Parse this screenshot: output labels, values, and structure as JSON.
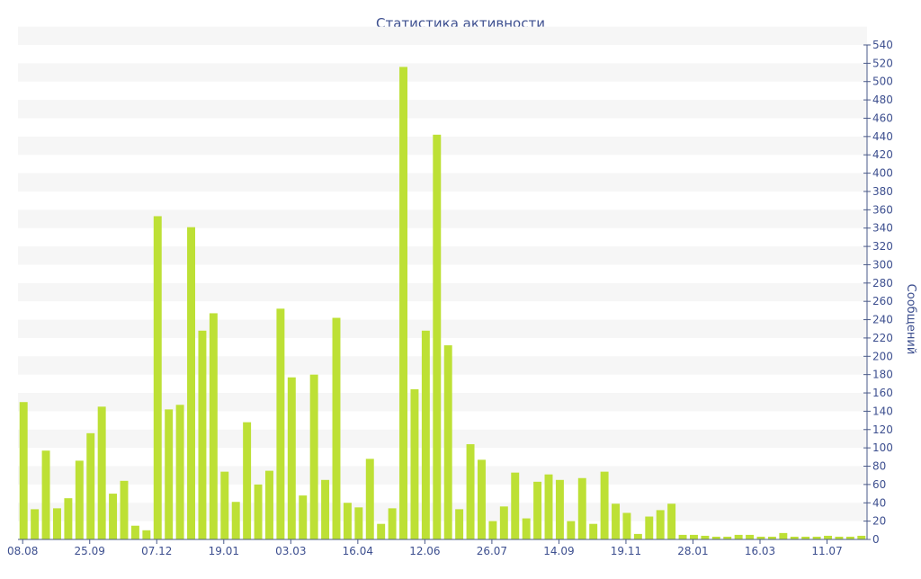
{
  "chart_data": {
    "type": "bar",
    "title": "Статистика активности",
    "xlabel": "",
    "ylabel": "Сообщений",
    "ylim": [
      0,
      540
    ],
    "y_ticks": [
      0,
      20,
      40,
      60,
      80,
      100,
      120,
      140,
      160,
      180,
      200,
      220,
      240,
      260,
      280,
      300,
      320,
      340,
      360,
      380,
      400,
      420,
      440,
      460,
      480,
      500,
      520,
      540
    ],
    "y_axis_side": "right",
    "grid": "alternating horizontal bands",
    "x_tick_labels": [
      {
        "label": "08.08",
        "index": 0
      },
      {
        "label": "25.09",
        "index": 6
      },
      {
        "label": "07.12",
        "index": 12
      },
      {
        "label": "19.01",
        "index": 18
      },
      {
        "label": "03.03",
        "index": 24
      },
      {
        "label": "16.04",
        "index": 30
      },
      {
        "label": "12.06",
        "index": 36
      },
      {
        "label": "26.07",
        "index": 42
      },
      {
        "label": "14.09",
        "index": 48
      },
      {
        "label": "19.11",
        "index": 54
      },
      {
        "label": "28.01",
        "index": 60
      },
      {
        "label": "16.03",
        "index": 66
      },
      {
        "label": "11.07",
        "index": 72
      }
    ],
    "values": [
      150,
      33,
      97,
      34,
      45,
      86,
      116,
      145,
      50,
      64,
      15,
      10,
      353,
      142,
      147,
      341,
      228,
      247,
      74,
      41,
      128,
      60,
      75,
      252,
      177,
      48,
      180,
      65,
      242,
      40,
      35,
      88,
      17,
      34,
      516,
      164,
      228,
      442,
      212,
      33,
      104,
      87,
      20,
      36,
      73,
      23,
      63,
      71,
      65,
      20,
      67,
      17,
      74,
      39,
      29,
      6,
      25,
      32,
      39,
      5,
      5,
      4,
      3,
      3,
      5,
      5,
      3,
      3,
      7,
      3,
      3,
      3,
      4,
      3,
      3,
      4
    ]
  },
  "colors": {
    "bar": "#bde035",
    "band": "#f6f6f6",
    "axis": "#4a5a8a",
    "text": "#3d4f8f"
  }
}
